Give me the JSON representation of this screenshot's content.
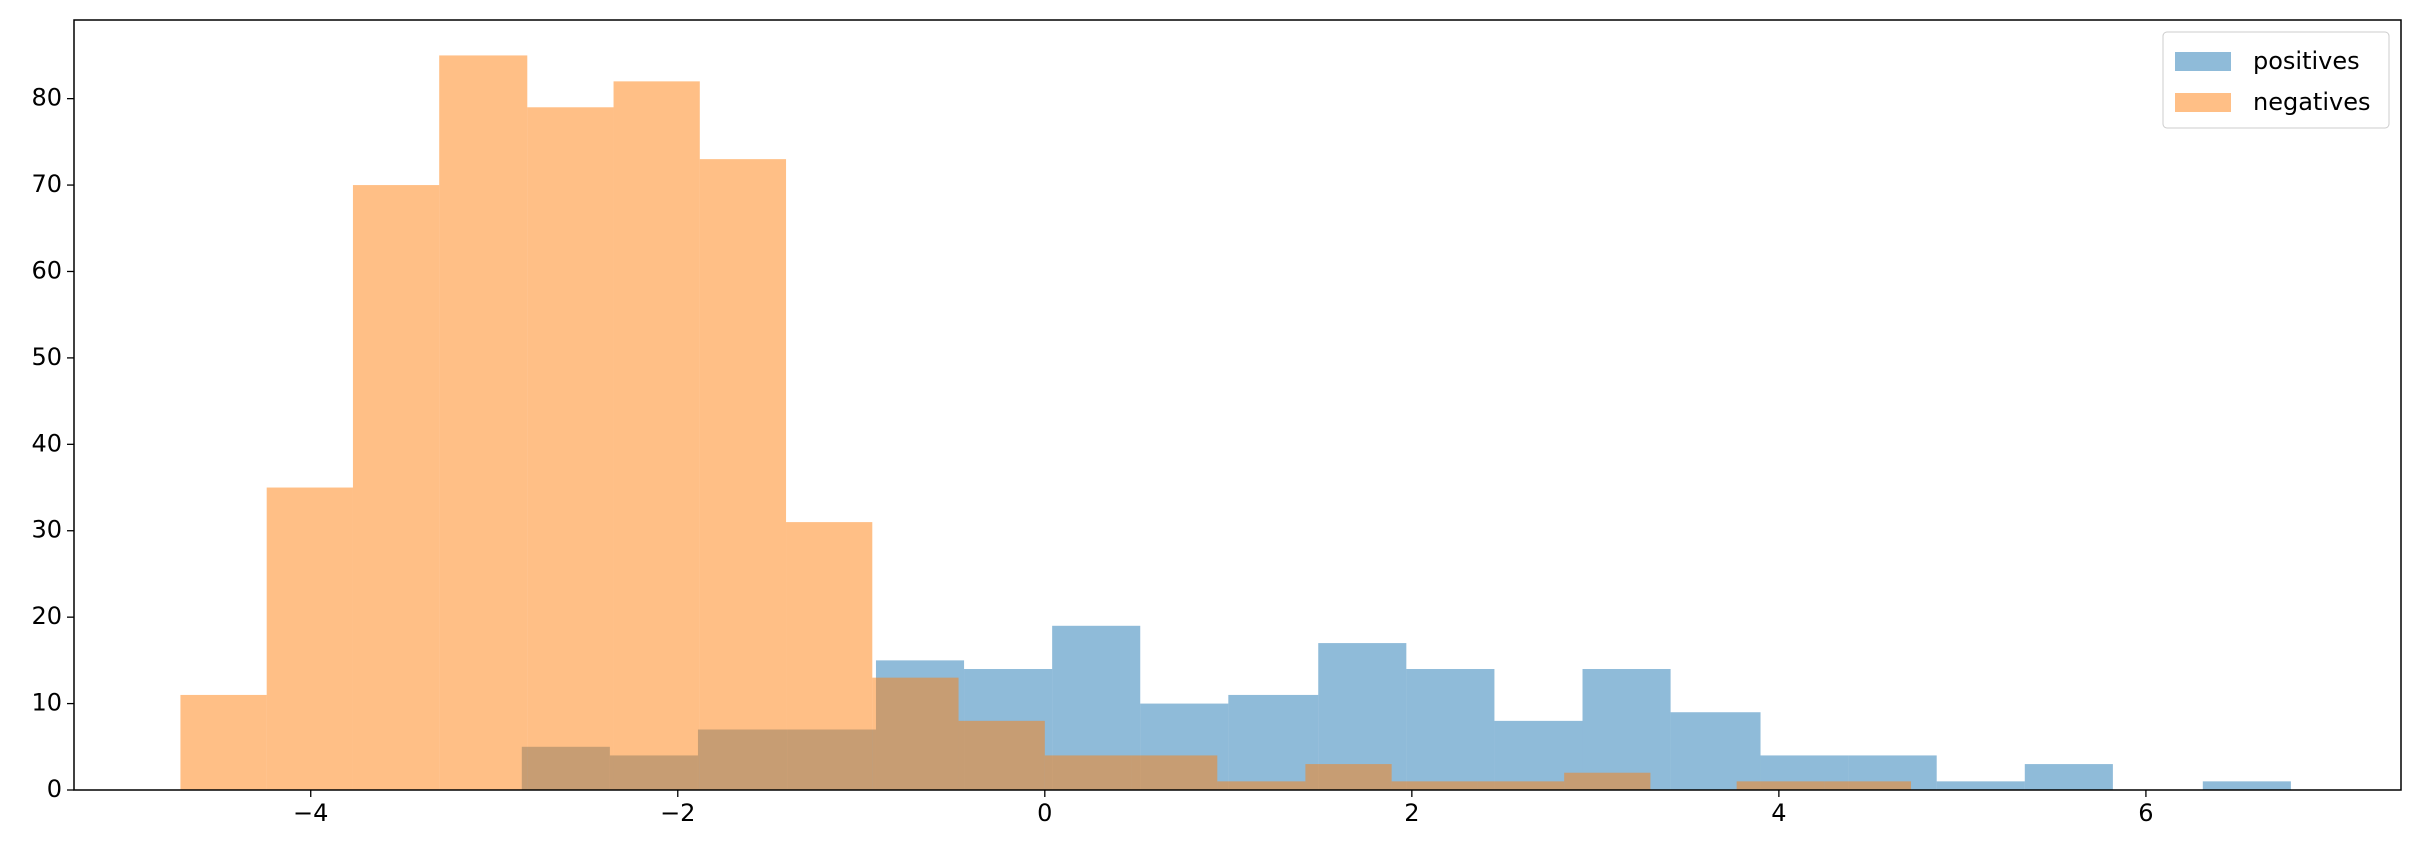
{
  "chart_data": {
    "type": "histogram",
    "series": [
      {
        "name": "positives",
        "color": "#1f77b4",
        "bins": [
          -2.85,
          -2.37,
          -1.89,
          -1.4,
          -0.92,
          -0.44,
          0.04,
          0.52,
          1.0,
          1.49,
          1.97,
          2.45,
          2.93,
          3.41,
          3.9,
          4.38,
          4.86,
          5.34,
          5.82,
          6.31,
          6.79
        ],
        "values": [
          5,
          4,
          7,
          7,
          15,
          14,
          19,
          10,
          11,
          17,
          14,
          8,
          14,
          9,
          4,
          4,
          1,
          3,
          0,
          1
        ]
      },
      {
        "name": "negatives",
        "color": "#ff7f0e",
        "bins": [
          -4.71,
          -4.24,
          -3.77,
          -3.3,
          -2.82,
          -2.35,
          -1.88,
          -1.41,
          -0.94,
          -0.47,
          0.0,
          0.47,
          0.94,
          1.42,
          1.89,
          2.36,
          2.83,
          3.3,
          3.77,
          4.25,
          4.72
        ],
        "values": [
          11,
          35,
          70,
          85,
          79,
          82,
          73,
          31,
          13,
          8,
          4,
          4,
          1,
          3,
          1,
          1,
          2,
          0,
          1,
          1
        ]
      }
    ],
    "alpha": 0.5,
    "xlim": [
      -5.29,
      7.39
    ],
    "ylim": [
      0,
      89.1
    ],
    "xticks": [
      {
        "value": -4,
        "label": "−4"
      },
      {
        "value": -2,
        "label": "−2"
      },
      0,
      2,
      4,
      6
    ],
    "yticks": [
      0,
      10,
      20,
      30,
      40,
      50,
      60,
      70,
      80
    ],
    "legend": "upper right"
  }
}
